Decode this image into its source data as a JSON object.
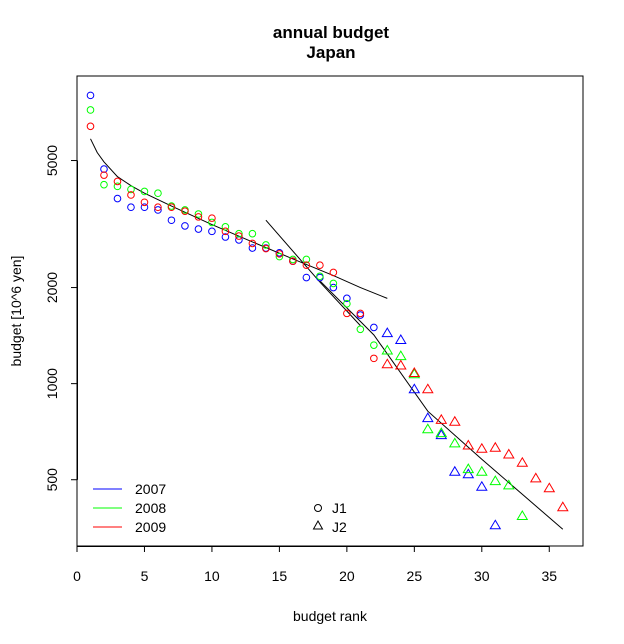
{
  "chart_data": {
    "type": "scatter",
    "title": "annual budget",
    "subtitle": "Japan",
    "xlabel": "budget rank",
    "ylabel": "budget [10^6 yen]",
    "xlim": [
      0,
      37.5
    ],
    "ylim": [
      310,
      9200
    ],
    "y_scale": "log",
    "x_ticks": [
      0,
      5,
      10,
      15,
      20,
      25,
      30,
      35
    ],
    "x_tick_labels": [
      "0",
      "5",
      "10",
      "15",
      "20",
      "25",
      "30",
      "35"
    ],
    "y_ticks": [
      500,
      1000,
      2000,
      5000
    ],
    "y_tick_labels": [
      "500",
      "1000",
      "2000",
      "5000"
    ],
    "grid": false,
    "colors": {
      "2007": "#0000ff",
      "2008": "#00ff00",
      "2009": "#ff0000",
      "fit": "#000000"
    },
    "legend_years": {
      "position": "bottom-left",
      "entries": [
        {
          "label": "2007",
          "color": "#0000ff"
        },
        {
          "label": "2008",
          "color": "#00ff00"
        },
        {
          "label": "2009",
          "color": "#ff0000"
        }
      ]
    },
    "legend_groups": {
      "position": "bottom-center",
      "entries": [
        {
          "label": "J1",
          "marker": "circle"
        },
        {
          "label": "J2",
          "marker": "triangle"
        }
      ]
    },
    "series": [
      {
        "year": "2007",
        "color": "#0000ff",
        "points": [
          {
            "x": 1,
            "y": 8000,
            "g": "J1"
          },
          {
            "x": 2,
            "y": 4700,
            "g": "J1"
          },
          {
            "x": 3,
            "y": 3800,
            "g": "J1"
          },
          {
            "x": 4,
            "y": 3570,
            "g": "J1"
          },
          {
            "x": 5,
            "y": 3570,
            "g": "J1"
          },
          {
            "x": 6,
            "y": 3500,
            "g": "J1"
          },
          {
            "x": 7,
            "y": 3250,
            "g": "J1"
          },
          {
            "x": 8,
            "y": 3120,
            "g": "J1"
          },
          {
            "x": 9,
            "y": 3050,
            "g": "J1"
          },
          {
            "x": 10,
            "y": 3000,
            "g": "J1"
          },
          {
            "x": 11,
            "y": 2880,
            "g": "J1"
          },
          {
            "x": 12,
            "y": 2820,
            "g": "J1"
          },
          {
            "x": 13,
            "y": 2660,
            "g": "J1"
          },
          {
            "x": 14,
            "y": 2660,
            "g": "J1"
          },
          {
            "x": 15,
            "y": 2570,
            "g": "J1"
          },
          {
            "x": 16,
            "y": 2420,
            "g": "J1"
          },
          {
            "x": 17,
            "y": 2150,
            "g": "J1"
          },
          {
            "x": 18,
            "y": 2150,
            "g": "J1"
          },
          {
            "x": 19,
            "y": 2000,
            "g": "J1"
          },
          {
            "x": 20,
            "y": 1850,
            "g": "J1"
          },
          {
            "x": 21,
            "y": 1640,
            "g": "J1"
          },
          {
            "x": 22,
            "y": 1500,
            "g": "J1"
          },
          {
            "x": 23,
            "y": 1440,
            "g": "J2"
          },
          {
            "x": 24,
            "y": 1370,
            "g": "J2"
          },
          {
            "x": 25,
            "y": 960,
            "g": "J2"
          },
          {
            "x": 26,
            "y": 780,
            "g": "J2"
          },
          {
            "x": 27,
            "y": 690,
            "g": "J2"
          },
          {
            "x": 28,
            "y": 530,
            "g": "J2"
          },
          {
            "x": 29,
            "y": 520,
            "g": "J2"
          },
          {
            "x": 30,
            "y": 475,
            "g": "J2"
          },
          {
            "x": 31,
            "y": 360,
            "g": "J2"
          }
        ]
      },
      {
        "year": "2008",
        "color": "#00ff00",
        "points": [
          {
            "x": 1,
            "y": 7200,
            "g": "J1"
          },
          {
            "x": 2,
            "y": 4200,
            "g": "J1"
          },
          {
            "x": 3,
            "y": 4150,
            "g": "J1"
          },
          {
            "x": 4,
            "y": 4060,
            "g": "J1"
          },
          {
            "x": 5,
            "y": 4000,
            "g": "J1"
          },
          {
            "x": 6,
            "y": 3950,
            "g": "J1"
          },
          {
            "x": 7,
            "y": 3600,
            "g": "J1"
          },
          {
            "x": 8,
            "y": 3500,
            "g": "J1"
          },
          {
            "x": 9,
            "y": 3400,
            "g": "J1"
          },
          {
            "x": 10,
            "y": 3200,
            "g": "J1"
          },
          {
            "x": 11,
            "y": 3100,
            "g": "J1"
          },
          {
            "x": 12,
            "y": 2950,
            "g": "J1"
          },
          {
            "x": 13,
            "y": 2950,
            "g": "J1"
          },
          {
            "x": 14,
            "y": 2720,
            "g": "J1"
          },
          {
            "x": 15,
            "y": 2500,
            "g": "J1"
          },
          {
            "x": 16,
            "y": 2450,
            "g": "J1"
          },
          {
            "x": 17,
            "y": 2450,
            "g": "J1"
          },
          {
            "x": 18,
            "y": 2170,
            "g": "J1"
          },
          {
            "x": 19,
            "y": 2060,
            "g": "J1"
          },
          {
            "x": 20,
            "y": 1780,
            "g": "J1"
          },
          {
            "x": 21,
            "y": 1480,
            "g": "J1"
          },
          {
            "x": 22,
            "y": 1320,
            "g": "J1"
          },
          {
            "x": 23,
            "y": 1270,
            "g": "J2"
          },
          {
            "x": 24,
            "y": 1220,
            "g": "J2"
          },
          {
            "x": 25,
            "y": 1070,
            "g": "J2"
          },
          {
            "x": 26,
            "y": 720,
            "g": "J2"
          },
          {
            "x": 27,
            "y": 700,
            "g": "J2"
          },
          {
            "x": 28,
            "y": 650,
            "g": "J2"
          },
          {
            "x": 29,
            "y": 540,
            "g": "J2"
          },
          {
            "x": 30,
            "y": 530,
            "g": "J2"
          },
          {
            "x": 31,
            "y": 495,
            "g": "J2"
          },
          {
            "x": 32,
            "y": 480,
            "g": "J2"
          },
          {
            "x": 33,
            "y": 385,
            "g": "J2"
          }
        ]
      },
      {
        "year": "2009",
        "color": "#ff0000",
        "points": [
          {
            "x": 1,
            "y": 6400,
            "g": "J1"
          },
          {
            "x": 2,
            "y": 4500,
            "g": "J1"
          },
          {
            "x": 3,
            "y": 4300,
            "g": "J1"
          },
          {
            "x": 4,
            "y": 3900,
            "g": "J1"
          },
          {
            "x": 5,
            "y": 3700,
            "g": "J1"
          },
          {
            "x": 6,
            "y": 3570,
            "g": "J1"
          },
          {
            "x": 7,
            "y": 3570,
            "g": "J1"
          },
          {
            "x": 8,
            "y": 3470,
            "g": "J1"
          },
          {
            "x": 9,
            "y": 3330,
            "g": "J1"
          },
          {
            "x": 10,
            "y": 3300,
            "g": "J1"
          },
          {
            "x": 11,
            "y": 3000,
            "g": "J1"
          },
          {
            "x": 12,
            "y": 2900,
            "g": "J1"
          },
          {
            "x": 13,
            "y": 2750,
            "g": "J1"
          },
          {
            "x": 14,
            "y": 2650,
            "g": "J1"
          },
          {
            "x": 15,
            "y": 2550,
            "g": "J1"
          },
          {
            "x": 16,
            "y": 2420,
            "g": "J1"
          },
          {
            "x": 17,
            "y": 2350,
            "g": "J1"
          },
          {
            "x": 18,
            "y": 2350,
            "g": "J1"
          },
          {
            "x": 19,
            "y": 2230,
            "g": "J1"
          },
          {
            "x": 20,
            "y": 1660,
            "g": "J1"
          },
          {
            "x": 21,
            "y": 1660,
            "g": "J1"
          },
          {
            "x": 22,
            "y": 1200,
            "g": "J1"
          },
          {
            "x": 23,
            "y": 1150,
            "g": "J2"
          },
          {
            "x": 24,
            "y": 1140,
            "g": "J2"
          },
          {
            "x": 25,
            "y": 1080,
            "g": "J2"
          },
          {
            "x": 26,
            "y": 960,
            "g": "J2"
          },
          {
            "x": 27,
            "y": 770,
            "g": "J2"
          },
          {
            "x": 28,
            "y": 760,
            "g": "J2"
          },
          {
            "x": 29,
            "y": 640,
            "g": "J2"
          },
          {
            "x": 30,
            "y": 625,
            "g": "J2"
          },
          {
            "x": 31,
            "y": 630,
            "g": "J2"
          },
          {
            "x": 32,
            "y": 600,
            "g": "J2"
          },
          {
            "x": 33,
            "y": 565,
            "g": "J2"
          },
          {
            "x": 34,
            "y": 505,
            "g": "J2"
          },
          {
            "x": 35,
            "y": 470,
            "g": "J2"
          },
          {
            "x": 36,
            "y": 410,
            "g": "J2"
          }
        ]
      }
    ],
    "fit_lines": [
      {
        "name": "fit-j1-curve",
        "points": [
          [
            1,
            5850
          ],
          [
            1.5,
            5300
          ],
          [
            2,
            4950
          ],
          [
            3,
            4450
          ],
          [
            4,
            4170
          ],
          [
            5,
            3950
          ],
          [
            7,
            3600
          ],
          [
            10,
            3150
          ],
          [
            13,
            2780
          ],
          [
            16,
            2460
          ],
          [
            19,
            2180
          ],
          [
            21,
            2000
          ],
          [
            23,
            1850
          ]
        ]
      },
      {
        "name": "fit-transition",
        "points": [
          [
            14,
            3250
          ],
          [
            18,
            2080
          ],
          [
            21,
            1520
          ]
        ]
      },
      {
        "name": "fit-j2-line",
        "points": [
          [
            18,
            2100
          ],
          [
            22,
            1420
          ],
          [
            26,
            820
          ],
          [
            30,
            580
          ],
          [
            33,
            450
          ],
          [
            36,
            350
          ]
        ]
      }
    ]
  }
}
